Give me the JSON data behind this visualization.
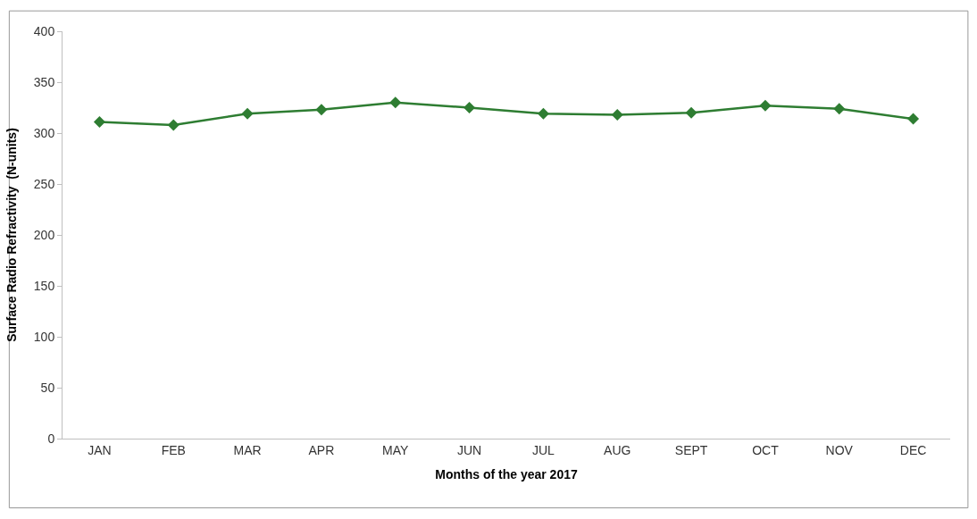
{
  "chart_data": {
    "type": "line",
    "xlabel": "Months of the year 2017",
    "ylabel": "Surface Radio Refractivity  (N-units)",
    "categories": [
      "JAN",
      "FEB",
      "MAR",
      "APR",
      "MAY",
      "JUN",
      "JUL",
      "AUG",
      "SEPT",
      "OCT",
      "NOV",
      "DEC"
    ],
    "series": [
      {
        "color": "#2e7d32",
        "values": [
          311,
          308,
          319,
          323,
          330,
          325,
          319,
          318,
          320,
          327,
          324,
          314
        ]
      }
    ],
    "ylim": [
      0,
      400
    ],
    "yticks": [
      0,
      50,
      100,
      150,
      200,
      250,
      300,
      350,
      400
    ],
    "grid": false,
    "marker": "diamond",
    "line_style": "solid"
  }
}
